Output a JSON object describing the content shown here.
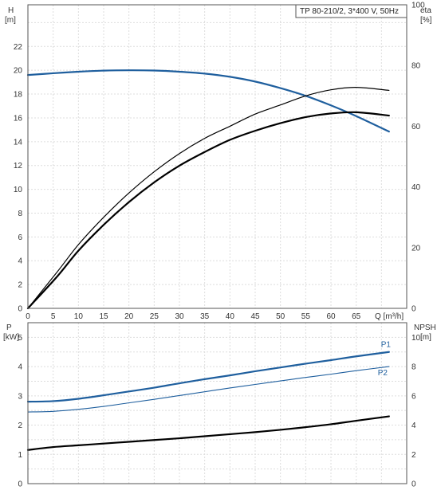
{
  "chart_data": [
    {
      "type": "line",
      "title": "TP 80-210/2, 3*400 V, 50Hz",
      "x_axis": {
        "label": "Q [m³/h]",
        "ticks": [
          "0",
          "5",
          "10",
          "15",
          "20",
          "25",
          "30",
          "35",
          "40",
          "45",
          "50",
          "55",
          "60",
          "65"
        ],
        "range": [
          0,
          75
        ]
      },
      "y_left": {
        "label_line1": "H",
        "label_line2": "[m]",
        "ticks": [
          "0",
          "2",
          "4",
          "6",
          "8",
          "10",
          "12",
          "14",
          "16",
          "18",
          "20",
          "22"
        ],
        "range": [
          0,
          25.5
        ]
      },
      "y_right": {
        "label_line1": "eta",
        "label_line2": "[%]",
        "ticks": [
          "0",
          "20",
          "40",
          "60",
          "80",
          "100"
        ],
        "range": [
          0,
          100
        ]
      },
      "grid": true,
      "series": [
        {
          "axis": "left",
          "color": "#1f5f9e",
          "x": [
            0,
            5,
            10,
            15,
            20,
            25,
            30,
            35,
            40,
            45,
            50,
            55,
            60,
            65,
            71.5
          ],
          "y": [
            19.6,
            19.75,
            19.88,
            19.97,
            20.0,
            19.98,
            19.88,
            19.72,
            19.45,
            19.05,
            18.5,
            17.85,
            17.05,
            16.15,
            14.85
          ]
        },
        {
          "axis": "right",
          "color": "#000000",
          "x": [
            0,
            5.8,
            10,
            15,
            20,
            25,
            30,
            35,
            40,
            45,
            50,
            55,
            60,
            65,
            71.5
          ],
          "y": [
            0,
            10.5,
            19,
            27.5,
            35,
            41.5,
            47,
            51.5,
            55.5,
            58.5,
            61,
            63,
            64.2,
            64.6,
            63.5
          ]
        },
        {
          "axis": "right",
          "color": "#000000",
          "x": [
            0,
            5.8,
            10,
            15,
            20,
            25,
            30,
            35,
            40,
            45,
            50,
            55,
            60,
            65,
            71.5
          ],
          "y": [
            0,
            12,
            21,
            30,
            38,
            45,
            51,
            56,
            60,
            64,
            67,
            70,
            72,
            72.8,
            71.8
          ]
        }
      ]
    },
    {
      "type": "line",
      "x_axis": {
        "ticks": [],
        "range": [
          0,
          75
        ]
      },
      "y_left": {
        "label_line1": "P",
        "label_line2": "[kW]",
        "ticks": [
          "0",
          "1",
          "2",
          "3",
          "4",
          "5"
        ],
        "range": [
          0,
          5.5
        ]
      },
      "y_right": {
        "label_line1": "NPSH",
        "label_line2": "[m]",
        "ticks": [
          "0",
          "2",
          "4",
          "6",
          "8",
          "10"
        ],
        "range": [
          0,
          11
        ]
      },
      "grid": true,
      "series": [
        {
          "name": "P1",
          "axis": "left",
          "color": "#1f5f9e",
          "width": 2.2,
          "x": [
            0,
            5,
            10,
            15,
            20,
            25,
            30,
            35,
            40,
            45,
            50,
            55,
            60,
            65,
            71.5
          ],
          "y": [
            2.8,
            2.82,
            2.9,
            3.02,
            3.15,
            3.28,
            3.43,
            3.57,
            3.7,
            3.84,
            3.97,
            4.1,
            4.22,
            4.35,
            4.5
          ]
        },
        {
          "name": "P2",
          "axis": "left",
          "color": "#1f5f9e",
          "width": 1.1,
          "x": [
            0,
            5,
            10,
            15,
            20,
            25,
            30,
            35,
            40,
            45,
            50,
            55,
            60,
            65,
            71.5
          ],
          "y": [
            2.45,
            2.47,
            2.54,
            2.64,
            2.76,
            2.88,
            3.01,
            3.14,
            3.27,
            3.39,
            3.51,
            3.63,
            3.74,
            3.86,
            4.0
          ]
        },
        {
          "axis": "right",
          "color": "#000000",
          "width": 2.2,
          "x": [
            0,
            5,
            10,
            15,
            20,
            25,
            30,
            35,
            40,
            45,
            50,
            55,
            60,
            65,
            71.5
          ],
          "y": [
            2.3,
            2.5,
            2.62,
            2.74,
            2.86,
            2.98,
            3.1,
            3.24,
            3.38,
            3.52,
            3.68,
            3.86,
            4.06,
            4.3,
            4.6
          ]
        }
      ]
    }
  ]
}
